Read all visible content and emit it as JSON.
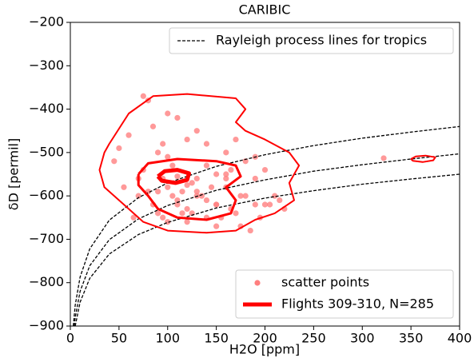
{
  "chart_data": {
    "type": "scatter",
    "title": "CARIBIC",
    "x_label": "H2O [ppm]",
    "y_label": "δD [permil]",
    "xlim": [
      0,
      400
    ],
    "ylim": [
      -900,
      -200
    ],
    "xticks": [
      0,
      50,
      100,
      150,
      200,
      250,
      300,
      350,
      400
    ],
    "yticks": [
      {
        "value": -900,
        "label": "−900"
      },
      {
        "value": -800,
        "label": "−800"
      },
      {
        "value": -700,
        "label": "−700"
      },
      {
        "value": -600,
        "label": "−600"
      },
      {
        "value": -500,
        "label": "−500"
      },
      {
        "value": -400,
        "label": "−400"
      },
      {
        "value": -300,
        "label": "−300"
      },
      {
        "value": -200,
        "label": "−200"
      }
    ],
    "rayleigh": {
      "name": "Rayleigh process lines for tropics",
      "color": "#000000",
      "curves": [
        {
          "x": [
            3,
            5,
            10,
            20,
            40,
            70,
            100,
            150,
            200,
            250,
            300,
            350,
            400
          ],
          "y": [
            -900,
            -852,
            -787,
            -722,
            -656,
            -604,
            -570,
            -532,
            -505,
            -484,
            -467,
            -453,
            -440
          ]
        },
        {
          "x": [
            4,
            5,
            10,
            20,
            40,
            70,
            100,
            150,
            200,
            250,
            300,
            350,
            400
          ],
          "y": [
            -900,
            -880,
            -820,
            -761,
            -701,
            -653,
            -622,
            -587,
            -563,
            -543,
            -528,
            -515,
            -503
          ]
        },
        {
          "x": [
            5,
            10,
            20,
            40,
            70,
            100,
            150,
            200,
            250,
            300,
            350,
            400
          ],
          "y": [
            -900,
            -845,
            -790,
            -734,
            -689,
            -661,
            -628,
            -605,
            -588,
            -573,
            -561,
            -550
          ]
        }
      ]
    },
    "scatter": {
      "name": "scatter points",
      "color": "#ff7f7f",
      "x": [
        75,
        80,
        85,
        95,
        100,
        60,
        50,
        45,
        55,
        70,
        75,
        90,
        110,
        120,
        130,
        140,
        160,
        170,
        180,
        190,
        200,
        210,
        95,
        100,
        105,
        110,
        115,
        120,
        125,
        130,
        135,
        140,
        145,
        150,
        155,
        160,
        165,
        175,
        85,
        90,
        95,
        100,
        105,
        110,
        115,
        120,
        125,
        130,
        140,
        150,
        160,
        170,
        180,
        190,
        195,
        200,
        205,
        215,
        65,
        70,
        80,
        140,
        150,
        165,
        175,
        185,
        190,
        220,
        100,
        110,
        120,
        130,
        322,
        150,
        160,
        90
      ],
      "y": [
        -370,
        -380,
        -440,
        -480,
        -410,
        -460,
        -490,
        -520,
        -580,
        -600,
        -540,
        -500,
        -420,
        -470,
        -450,
        -480,
        -500,
        -470,
        -520,
        -510,
        -540,
        -600,
        -560,
        -580,
        -600,
        -620,
        -590,
        -630,
        -640,
        -560,
        -600,
        -610,
        -580,
        -620,
        -650,
        -560,
        -540,
        -600,
        -620,
        -640,
        -650,
        -660,
        -530,
        -610,
        -640,
        -660,
        -570,
        -600,
        -650,
        -620,
        -580,
        -640,
        -600,
        -560,
        -650,
        -620,
        -620,
        -610,
        -650,
        -560,
        -590,
        -530,
        -550,
        -630,
        -670,
        -680,
        -620,
        -630,
        -510,
        -555,
        -575,
        -590,
        -513,
        -670,
        -550,
        -590
      ]
    },
    "contours": {
      "name": "Flights 309-310, N=285",
      "color": "#ff0000",
      "levels": [
        {
          "x": [
            40,
            60,
            85,
            120,
            170,
            180,
            170,
            180,
            200,
            225,
            235,
            225,
            230,
            210,
            190,
            170,
            140,
            100,
            75,
            55,
            35,
            30,
            35,
            40,
            null,
            350,
            355,
            365,
            375,
            373,
            362,
            352,
            350
          ],
          "y": [
            -480,
            -410,
            -370,
            -365,
            -375,
            -400,
            -430,
            -450,
            -470,
            -500,
            -530,
            -570,
            -610,
            -640,
            -655,
            -680,
            -685,
            -680,
            -660,
            -620,
            -580,
            -540,
            -500,
            -480,
            null,
            -515,
            -509,
            -507,
            -511,
            -518,
            -522,
            -519,
            -515
          ]
        },
        {
          "x": [
            70,
            80,
            110,
            150,
            170,
            175,
            160,
            170,
            165,
            140,
            110,
            90,
            80,
            70,
            70
          ],
          "y": [
            -550,
            -525,
            -515,
            -520,
            -530,
            -555,
            -580,
            -610,
            -640,
            -655,
            -650,
            -630,
            -600,
            -575,
            -550
          ]
        },
        {
          "x": [
            90,
            97,
            110,
            122,
            120,
            108,
            94,
            90
          ],
          "y": [
            -555,
            -543,
            -540,
            -548,
            -563,
            -570,
            -565,
            -555
          ]
        }
      ]
    }
  }
}
